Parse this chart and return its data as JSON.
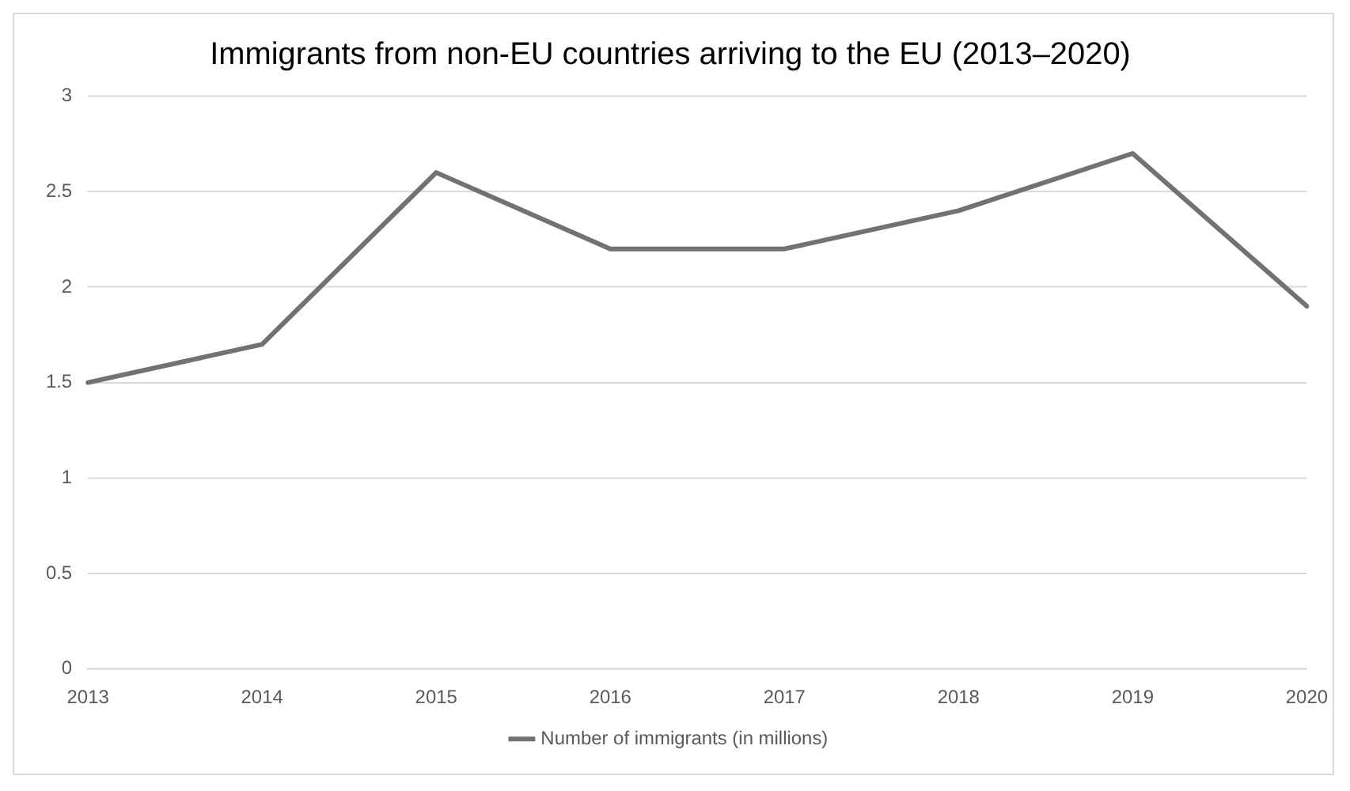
{
  "chart_data": {
    "type": "line",
    "title": "Immigrants from non-EU countries arriving to the EU (2013–2020)",
    "categories": [
      "2013",
      "2014",
      "2015",
      "2016",
      "2017",
      "2018",
      "2019",
      "2020"
    ],
    "series": [
      {
        "name": "Number of immigrants (in millions)",
        "color": "#767171",
        "values": [
          1.5,
          1.7,
          2.6,
          2.2,
          2.2,
          2.4,
          2.7,
          1.9
        ]
      }
    ],
    "ylim": [
      0,
      3
    ],
    "yticks": [
      0,
      0.5,
      1,
      1.5,
      2,
      2.5,
      3
    ],
    "grid": "y",
    "legend": "bottom",
    "marker": "none",
    "line_style": "solid"
  }
}
